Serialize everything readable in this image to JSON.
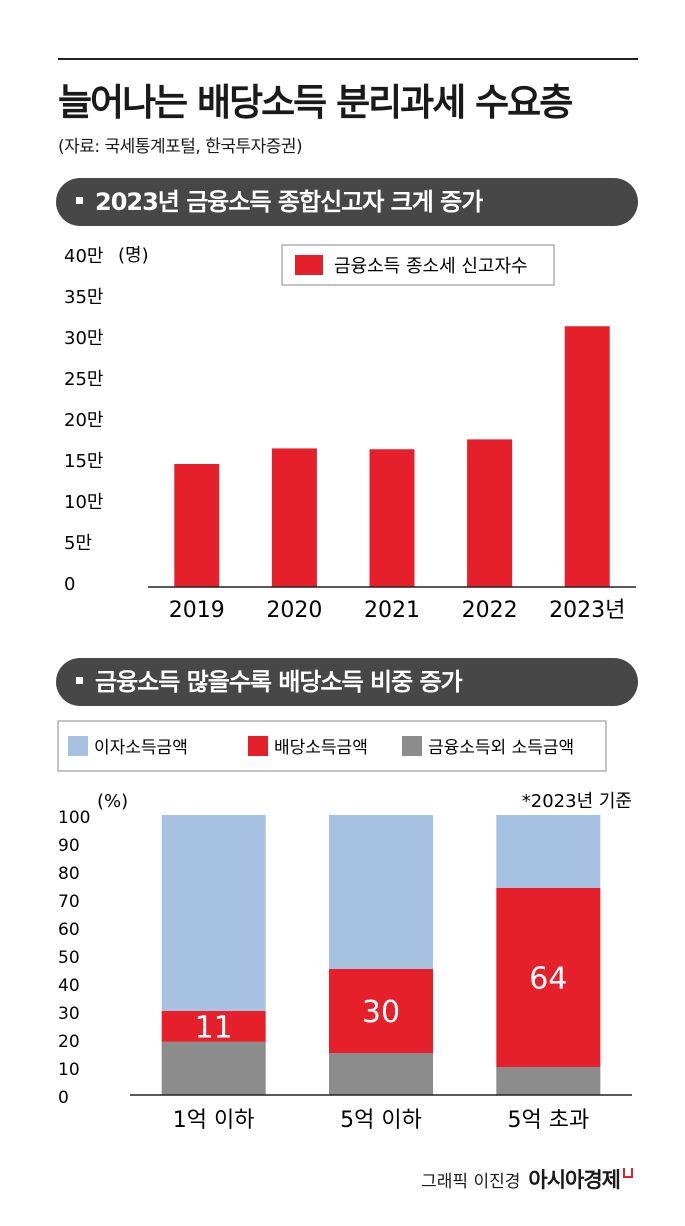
{
  "title": "늘어나는 배당소득 분리과세 수요층",
  "source": "(자료: 국세통계포털, 한국투자증권)",
  "colors": {
    "red": "#e5202b",
    "blue": "#a6c1e2",
    "gray": "#8c8c8c",
    "dark": "#474747"
  },
  "section1": {
    "heading": "2023년 금융소득 종합신고자 크게 증가"
  },
  "section2": {
    "heading": "금융소득 많을수록 배당소득 비중 증가",
    "note": "*2023년 기준"
  },
  "chart_data": [
    {
      "type": "bar",
      "title": "2023년 금융소득 종합신고자 크게 증가",
      "unit_label": "(명)",
      "categories": [
        "2019",
        "2020",
        "2021",
        "2022",
        "2023년"
      ],
      "series": [
        {
          "name": "금융소득 종소세 신고자수",
          "values": [
            150000,
            169000,
            168000,
            180000,
            318000
          ]
        }
      ],
      "yticks": [
        "0",
        "5만",
        "10만",
        "15만",
        "20만",
        "25만",
        "30만",
        "35만",
        "40만"
      ],
      "ylim": [
        0,
        400000
      ]
    },
    {
      "type": "bar",
      "stacked": true,
      "title": "금융소득 많을수록 배당소득 비중 증가",
      "unit_label": "(%)",
      "categories": [
        "1억 이하",
        "5억 이하",
        "5억 초과"
      ],
      "series": [
        {
          "name": "금융소득외 소득금액",
          "values": [
            19,
            15,
            10
          ]
        },
        {
          "name": "배당소득금액",
          "values": [
            11,
            30,
            64
          ]
        },
        {
          "name": "이자소득금액",
          "values": [
            70,
            55,
            26
          ]
        }
      ],
      "data_labels": [
        "11",
        "30",
        "64"
      ],
      "legend": [
        "이자소득금액",
        "배당소득금액",
        "금융소득외 소득금액"
      ],
      "yticks": [
        "0",
        "10",
        "20",
        "30",
        "40",
        "50",
        "60",
        "70",
        "80",
        "90",
        "100"
      ],
      "ylim": [
        0,
        100
      ]
    }
  ],
  "credit": {
    "text": "그래픽 이진경",
    "brand": "아시아경제"
  }
}
